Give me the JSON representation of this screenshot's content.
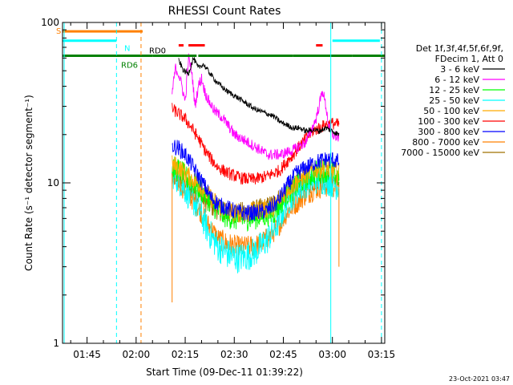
{
  "chart_data": {
    "type": "line",
    "title": "RHESSI Count Rates",
    "xlabel": "Start Time (09-Dec-11 01:39:22)",
    "ylabel": "Count Rate (s⁻¹ detector segment⁻¹)",
    "y_scale": "log",
    "ylim": [
      1,
      100
    ],
    "xlim_minutes": [
      97.5,
      196
    ],
    "x_ticks": [
      {
        "minute": 105,
        "label": "01:45"
      },
      {
        "minute": 120,
        "label": "02:00"
      },
      {
        "minute": 135,
        "label": "02:15"
      },
      {
        "minute": 150,
        "label": "02:30"
      },
      {
        "minute": 165,
        "label": "02:45"
      },
      {
        "minute": 180,
        "label": "03:00"
      },
      {
        "minute": 195,
        "label": "03:15"
      }
    ],
    "y_ticks": [
      {
        "value": 1,
        "label": "1"
      },
      {
        "value": 10,
        "label": "10"
      },
      {
        "value": 100,
        "label": "100"
      }
    ],
    "legend_header": [
      "Det 1f,3f,4f,5f,6f,9f,",
      "FDecim 1, Att 0"
    ],
    "legend_position": "right",
    "series": [
      {
        "name": "3 - 6 keV",
        "color": "#000000",
        "x": [
          133,
          134.5,
          136,
          137.5,
          139,
          140.5,
          142,
          144,
          146,
          148,
          150,
          152,
          154,
          156,
          158,
          160,
          162,
          164,
          166,
          168,
          170,
          172,
          174,
          176,
          178,
          180,
          182
        ],
        "y": [
          58,
          50,
          48,
          60,
          52,
          55,
          50,
          44,
          40,
          37,
          35,
          33,
          31,
          29,
          28,
          27,
          26,
          24,
          23,
          22,
          22,
          21,
          21.5,
          21,
          22,
          21,
          20
        ]
      },
      {
        "name": "6 - 12 keV",
        "color": "#ff00ff",
        "x": [
          131,
          132,
          133,
          134,
          135,
          136,
          137,
          138,
          139,
          140,
          141,
          142,
          144,
          146,
          148,
          150,
          152,
          154,
          156,
          158,
          160,
          164,
          168,
          172,
          175,
          177,
          178,
          179,
          180,
          182
        ],
        "y": [
          36,
          52,
          48,
          40,
          32,
          60,
          50,
          30,
          40,
          45,
          37,
          33,
          28,
          26,
          23,
          20,
          19,
          18,
          17,
          16,
          15,
          15,
          16,
          18,
          25,
          38,
          30,
          22,
          20,
          19
        ]
      },
      {
        "name": "12 - 25 keV",
        "color": "#00ff00",
        "x": [
          131,
          133,
          136,
          140,
          143,
          146,
          150,
          154,
          158,
          162,
          166,
          170,
          174,
          178,
          180,
          182
        ],
        "y": [
          12.5,
          12,
          10.5,
          9,
          7.5,
          6.4,
          6,
          6,
          6.2,
          6.5,
          8.5,
          10,
          11.5,
          12,
          11.5,
          11
        ]
      },
      {
        "name": "25 - 50 keV",
        "color": "#00ffff",
        "x": [
          131,
          133,
          136,
          139,
          142,
          145,
          148,
          151,
          154,
          157,
          160,
          163,
          166,
          169,
          172,
          175,
          178,
          180,
          182
        ],
        "y": [
          11.5,
          10.5,
          8.5,
          7,
          5,
          4,
          3.6,
          3.4,
          3.5,
          3.8,
          4.4,
          5.5,
          7.5,
          9,
          10,
          10.5,
          10.5,
          10,
          9.5
        ]
      },
      {
        "name": "50 - 100 keV",
        "color": "#ffaa00",
        "x": [
          131,
          133,
          136,
          140,
          143,
          146,
          150,
          154,
          158,
          162,
          166,
          170,
          174,
          178,
          180,
          182
        ],
        "y": [
          13,
          12.5,
          11,
          9.5,
          8,
          7,
          6.5,
          6.5,
          6.8,
          7,
          9,
          10.5,
          12,
          12.5,
          12,
          11.5
        ]
      },
      {
        "name": "100 - 300 keV",
        "color": "#ff0000",
        "x": [
          131,
          133,
          135,
          137,
          139,
          141,
          143,
          145,
          148,
          152,
          156,
          160,
          164,
          166,
          168,
          170,
          172,
          174,
          176,
          178,
          180,
          182
        ],
        "y": [
          29,
          27,
          25,
          22,
          19,
          16,
          14,
          12.5,
          11.5,
          10.7,
          10.5,
          11,
          12,
          13.5,
          15,
          17,
          19,
          21,
          22,
          23,
          23.5,
          23
        ]
      },
      {
        "name": "300 - 800 keV",
        "color": "#0000ff",
        "x": [
          131,
          133,
          135,
          137,
          139,
          141,
          143,
          146,
          149,
          152,
          156,
          160,
          163,
          166,
          169,
          172,
          175,
          178,
          180,
          182
        ],
        "y": [
          17,
          16.5,
          15,
          13,
          11,
          9.5,
          8,
          7.2,
          6.8,
          6.5,
          6.5,
          6.7,
          7.5,
          9.5,
          11.5,
          12.5,
          13.5,
          14,
          14,
          13.5
        ]
      },
      {
        "name": "800 - 7000 keV",
        "color": "#ff8000",
        "x": [
          131,
          133,
          136,
          139,
          142,
          145,
          148,
          151,
          154,
          157,
          160,
          163,
          166,
          169,
          172,
          175,
          178,
          180,
          182
        ],
        "y": [
          10.5,
          10,
          8.5,
          7,
          5.5,
          4.5,
          4.2,
          4,
          4,
          4.1,
          4.5,
          5.2,
          6.5,
          7.5,
          8.5,
          9.2,
          9.5,
          9.5,
          9.2
        ]
      },
      {
        "name": "7000 - 15000 keV",
        "color": "#a07000",
        "x": [
          131,
          133,
          136,
          140,
          144,
          148,
          152,
          156,
          160,
          164,
          168,
          172,
          176,
          180,
          182
        ],
        "y": [
          11,
          10.5,
          9.5,
          8,
          7,
          6.5,
          6.5,
          6.7,
          7,
          8,
          9.5,
          10,
          10.5,
          10.5,
          10
        ]
      }
    ],
    "vertical_lines": [
      {
        "minute": 98,
        "color": "#00ffff",
        "style": "solid"
      },
      {
        "minute": 114,
        "color": "#00ffff",
        "style": "dashed"
      },
      {
        "minute": 121.5,
        "color": "#ff8000",
        "style": "dashed"
      },
      {
        "minute": 179.5,
        "color": "#00ffff",
        "style": "solid"
      },
      {
        "minute": 195,
        "color": "#00ffff",
        "style": "dashed"
      }
    ],
    "attenuator_bars": [
      {
        "label": "S",
        "color": "#ff8000",
        "y": 88,
        "segments": [
          [
            97.5,
            122
          ]
        ]
      },
      {
        "label": "N",
        "color": "#00ffff",
        "y": 77,
        "segments": [
          [
            97.5,
            114
          ],
          [
            180,
            194.5
          ]
        ]
      },
      {
        "label": "RD0",
        "color": "#ff0000",
        "y": 72,
        "segments": [
          [
            133,
            134.5
          ],
          [
            136,
            141
          ],
          [
            175,
            177
          ]
        ]
      },
      {
        "label": "RD6",
        "color": "#008000",
        "y": 62,
        "segments": [
          [
            97.5,
            125
          ],
          [
            125,
            138.5
          ],
          [
            139,
            168
          ],
          [
            168,
            186
          ],
          [
            186,
            196
          ]
        ]
      }
    ]
  },
  "timestamp": "23-Oct-2021 03:47"
}
